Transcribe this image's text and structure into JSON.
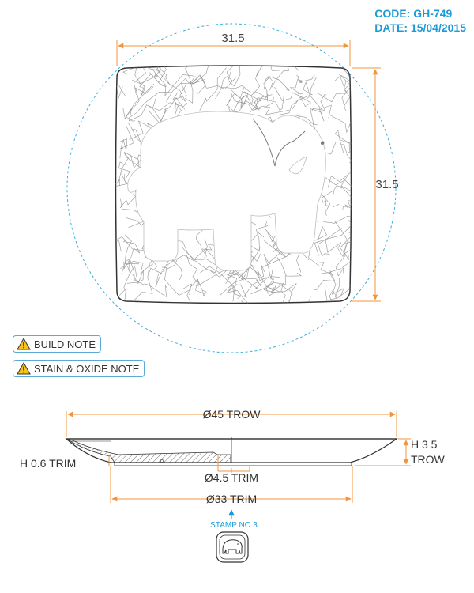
{
  "header": {
    "code": "CODE: GH-749",
    "date": "DATE: 15/04/2015"
  },
  "top_view": {
    "width_dim": "31.5",
    "height_dim": "31.5"
  },
  "notes": [
    {
      "label": "BUILD NOTE",
      "icon": "warning-icon"
    },
    {
      "label": "STAIN & OXIDE NOTE",
      "icon": "warning-icon"
    }
  ],
  "section_view": {
    "outer_diameter": "Ø45 TROW",
    "height_line1": "H 3 5",
    "height_line2": "TROW",
    "rim_height": "H 0.6 TRIM",
    "foot_diameter": "Ø4.5 TRIM",
    "base_diameter": "Ø33 TRIM"
  },
  "stamp": {
    "label": "STAMP NO 3",
    "icon": "elephant-stamp-icon"
  },
  "colors": {
    "dimension": "#f0963c",
    "accent": "#1e9ad6",
    "outline": "#333333",
    "sketch": "#8a8a8a"
  }
}
